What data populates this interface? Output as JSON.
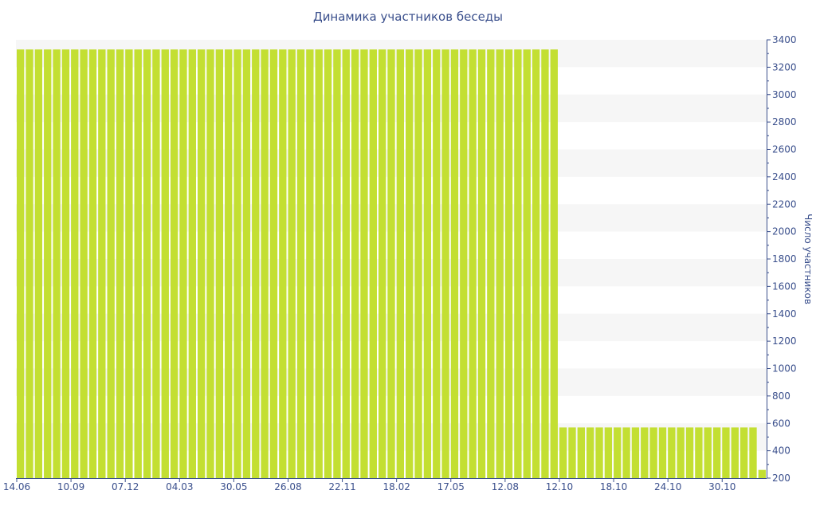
{
  "chart_data": {
    "type": "bar",
    "title": "Динамика участников беседы",
    "xlabel": "",
    "ylabel": "Число участников",
    "ylim": [
      200,
      3400
    ],
    "y_ticks": [
      200,
      400,
      600,
      800,
      1000,
      1200,
      1400,
      1600,
      1800,
      2000,
      2200,
      2400,
      2600,
      2800,
      3000,
      3200,
      3400
    ],
    "x_tick_labels": [
      "14.06",
      "10.09",
      "07.12",
      "04.03",
      "30.05",
      "26.08",
      "22.11",
      "18.02",
      "17.05",
      "12.08",
      "12.10",
      "18.10",
      "24.10",
      "30.10"
    ],
    "x_tick_bar_index": [
      0,
      6,
      12,
      18,
      24,
      30,
      36,
      42,
      48,
      54,
      60,
      66,
      72,
      78
    ],
    "y_axis_side": "right",
    "grid": "alternating horizontal bands",
    "legend": "none",
    "series": [
      {
        "values": [
          3330,
          3330,
          3330,
          3330,
          3330,
          3330,
          3330,
          3330,
          3330,
          3330,
          3330,
          3330,
          3330,
          3330,
          3330,
          3330,
          3330,
          3330,
          3330,
          3330,
          3330,
          3330,
          3330,
          3330,
          3330,
          3330,
          3330,
          3330,
          3330,
          3330,
          3330,
          3330,
          3330,
          3330,
          3330,
          3330,
          3330,
          3330,
          3330,
          3330,
          3330,
          3330,
          3330,
          3330,
          3330,
          3330,
          3330,
          3330,
          3330,
          3330,
          3330,
          3330,
          3330,
          3330,
          3330,
          3330,
          3330,
          3330,
          3330,
          3330,
          570,
          570,
          570,
          570,
          570,
          570,
          570,
          570,
          570,
          570,
          570,
          570,
          570,
          570,
          570,
          570,
          570,
          570,
          570,
          570,
          570,
          570,
          260
        ]
      }
    ],
    "colors": {
      "bar": "#c3df32",
      "band": "#f6f6f6",
      "axis": "#3a4f8c",
      "text": "#3a4f8c"
    }
  }
}
